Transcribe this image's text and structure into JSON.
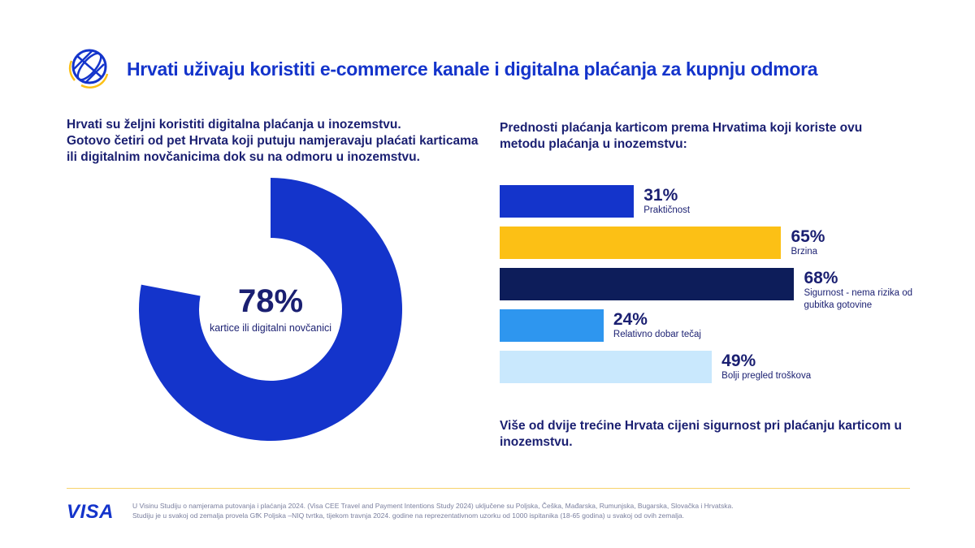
{
  "header": {
    "title": "Hrvati uživaju koristiti e-commerce kanale i digitalna plaćanja za kupnju odmora",
    "icon": "globe-icon"
  },
  "left": {
    "line1": "Hrvati su željni koristiti digitalna plaćanja u inozemstvu.",
    "line2": "Gotovo četiri od pet Hrvata koji putuju namjeravaju plaćati karticama ili digitalnim novčanicima dok su na odmoru u inozemstvu."
  },
  "right": {
    "title": "Prednosti plaćanja karticom prema Hrvatima koji koriste ovu metodu plaćanja u inozemstvu:",
    "conclusion": "Više od dvije trećine Hrvata cijeni sigurnost pri plaćanju karticom u inozemstvu."
  },
  "footer": {
    "logo": "VISA",
    "note_line1": "U Visinu Studiju o namjerama putovanja i plaćanja 2024. (Visa CEE Travel and Payment Intentions Study 2024) uključene su Poljska, Češka, Mađarska, Rumunjska, Bugarska, Slovačka i Hrvatska.",
    "note_line2": "Studiju je u svakoj od zemalja provela GfK Poljska –NIQ tvrtka, tijekom travnja 2024. godine na reprezentativnom uzorku od 1000 ispitanika (18-65 godina) u svakoj od ovih zemalja."
  },
  "colors": {
    "brand_blue": "#1434cb",
    "navy": "#1a1f71",
    "yellow": "#fcc015",
    "light_blue": "#2e96ef",
    "pale_blue": "#c9e8fd"
  },
  "chart_data": [
    {
      "type": "pie",
      "subtype": "donut",
      "value": 78,
      "max": 100,
      "value_label": "78%",
      "label": "kartice ili digitalni novčanici",
      "color": "#1434cb"
    },
    {
      "type": "bar",
      "orientation": "horizontal",
      "categories": [
        "Praktičnost",
        "Brzina",
        "Sigurnost - nema rizika od gubitka gotovine",
        "Relativno dobar tečaj",
        "Bolji pregled troškova"
      ],
      "values": [
        31,
        65,
        68,
        24,
        49
      ],
      "value_labels": [
        "31%",
        "65%",
        "68%",
        "24%",
        "49%"
      ],
      "colors": [
        "#1434cb",
        "#fcc015",
        "#0d1d5a",
        "#2e96ef",
        "#c9e8fd"
      ],
      "xlim": [
        0,
        100
      ],
      "grid": false
    }
  ]
}
